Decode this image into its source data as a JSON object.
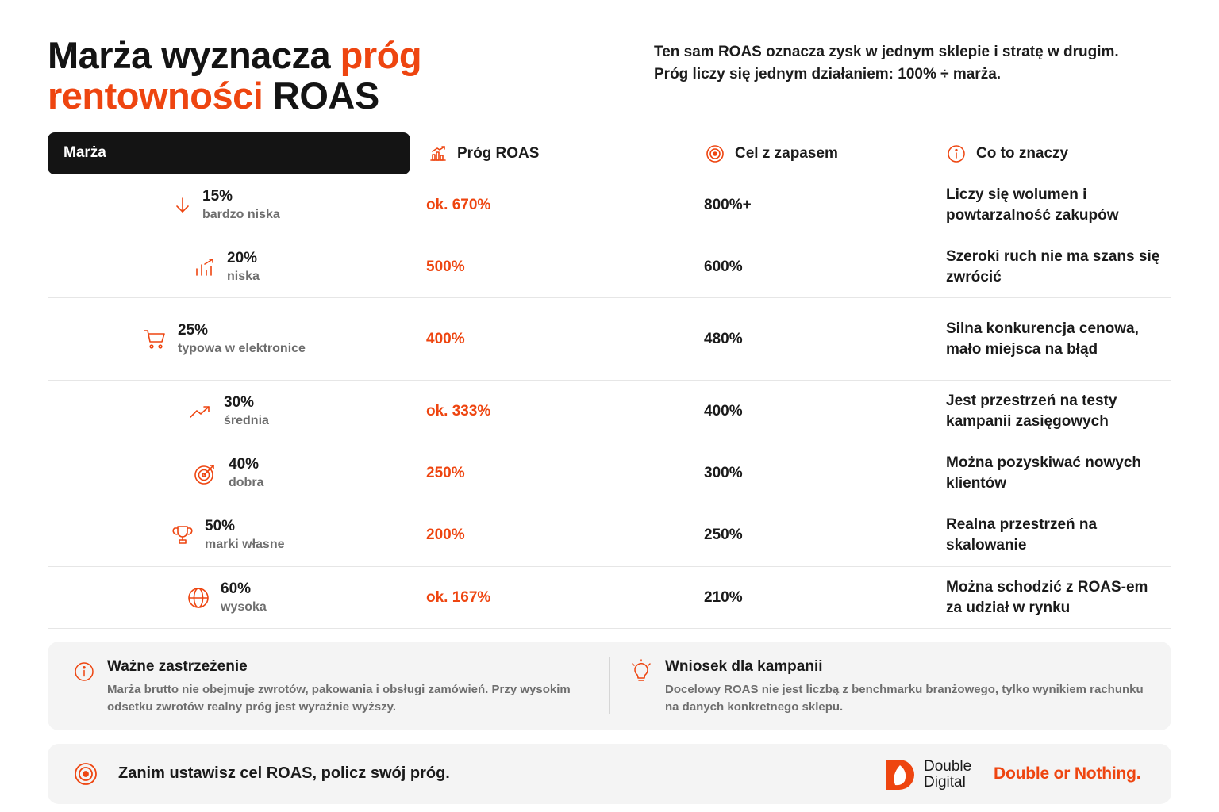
{
  "header": {
    "title_part1": "Marża wyznacza ",
    "title_accent": "próg rentowności",
    "title_part2": " ROAS",
    "lead": "Ten sam ROAS oznacza zysk w jednym sklepie i stratę w drugim. Próg liczy się jednym działaniem: 100% ÷ marża."
  },
  "table": {
    "headers": {
      "marza": "Marża",
      "prog": "Próg ROAS",
      "cel": "Cel z zapasem",
      "co": "Co to znaczy"
    },
    "header_icons": {
      "prog": "bar-chart-up-icon",
      "cel": "target-icon",
      "co": "info-icon"
    },
    "rows": [
      {
        "pct": "15%",
        "label": "bardzo niska",
        "icon": "arrow-down-icon",
        "prog": "ok. 670%",
        "cel": "800%+",
        "co": "Liczy się wolumen i powtarzalność zakupów"
      },
      {
        "pct": "20%",
        "label": "niska",
        "icon": "bar-chart-icon",
        "prog": "500%",
        "cel": "600%",
        "co": "Szeroki ruch nie ma szans się zwrócić"
      },
      {
        "pct": "25%",
        "label": "typowa w elektronice",
        "icon": "shopping-cart-icon",
        "prog": "400%",
        "cel": "480%",
        "co": "Silna konkurencja cenowa, mało miejsca na błąd"
      },
      {
        "pct": "30%",
        "label": "średnia",
        "icon": "trend-up-icon",
        "prog": "ok. 333%",
        "cel": "400%",
        "co": "Jest przestrzeń na testy kampanii zasięgowych"
      },
      {
        "pct": "40%",
        "label": "dobra",
        "icon": "target-arrow-icon",
        "prog": "250%",
        "cel": "300%",
        "co": "Można pozyskiwać nowych klientów"
      },
      {
        "pct": "50%",
        "label": "marki własne",
        "icon": "trophy-icon",
        "prog": "200%",
        "cel": "250%",
        "co": "Realna przestrzeń na skalowanie"
      },
      {
        "pct": "60%",
        "label": "wysoka",
        "icon": "globe-icon",
        "prog": "ok. 167%",
        "cel": "210%",
        "co": "Można schodzić z ROAS-em za udział w rynku"
      }
    ]
  },
  "notes": {
    "left": {
      "icon": "info-icon",
      "title": "Ważne zastrzeżenie",
      "body": "Marża brutto nie obejmuje zwrotów, pakowania i obsługi zamówień. Przy wysokim odsetku zwrotów realny próg jest wyraźnie wyższy."
    },
    "right": {
      "icon": "lightbulb-icon",
      "title": "Wniosek dla kampanii",
      "body": "Docelowy ROAS nie jest liczbą z benchmarku branżowego, tylko wynikiem rachunku na danych konkretnego sklepu."
    }
  },
  "footer": {
    "icon": "target-icon",
    "text": "Zanim ustawisz cel ROAS, policz swój próg.",
    "logo_line1": "Double",
    "logo_line2": "Digital",
    "slogan": "Double or Nothing."
  },
  "colors": {
    "accent": "#ee4510",
    "dark": "#141414",
    "muted": "#6e6e6e",
    "panel": "#f4f4f4"
  }
}
